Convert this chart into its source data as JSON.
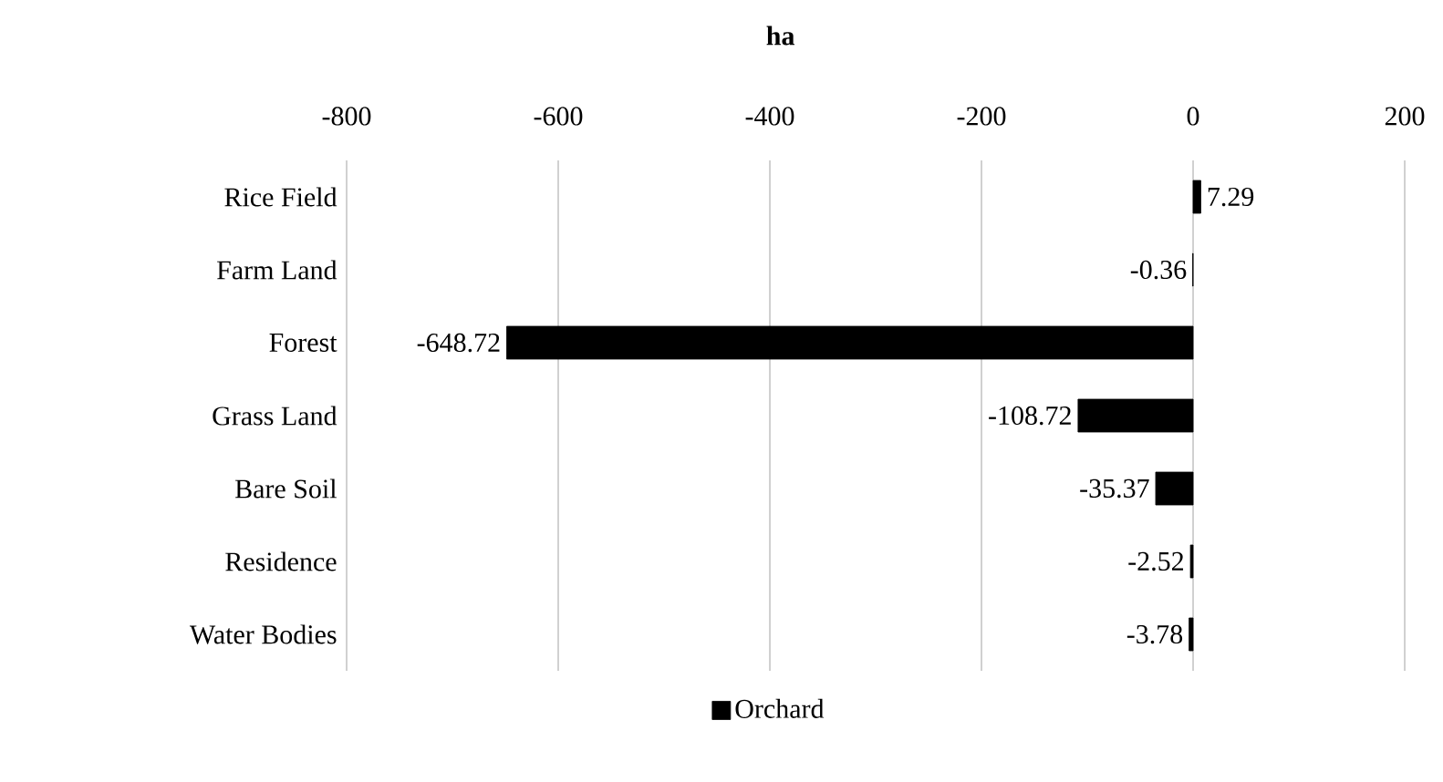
{
  "chart_data": {
    "type": "bar",
    "orientation": "horizontal",
    "xlabel": "ha",
    "categories": [
      "Rice Field",
      "Farm Land",
      "Forest",
      "Grass Land",
      "Bare Soil",
      "Residence",
      "Water Bodies"
    ],
    "series": [
      {
        "name": "Orchard",
        "color": "#000000",
        "values": [
          7.29,
          -0.36,
          -648.72,
          -108.72,
          -35.37,
          -2.52,
          -3.78
        ]
      }
    ],
    "xlim": [
      -800,
      200
    ],
    "xticks": [
      -800,
      -600,
      -400,
      -200,
      0,
      200
    ],
    "grid": "x",
    "legend": "bottom",
    "data_labels": true
  }
}
